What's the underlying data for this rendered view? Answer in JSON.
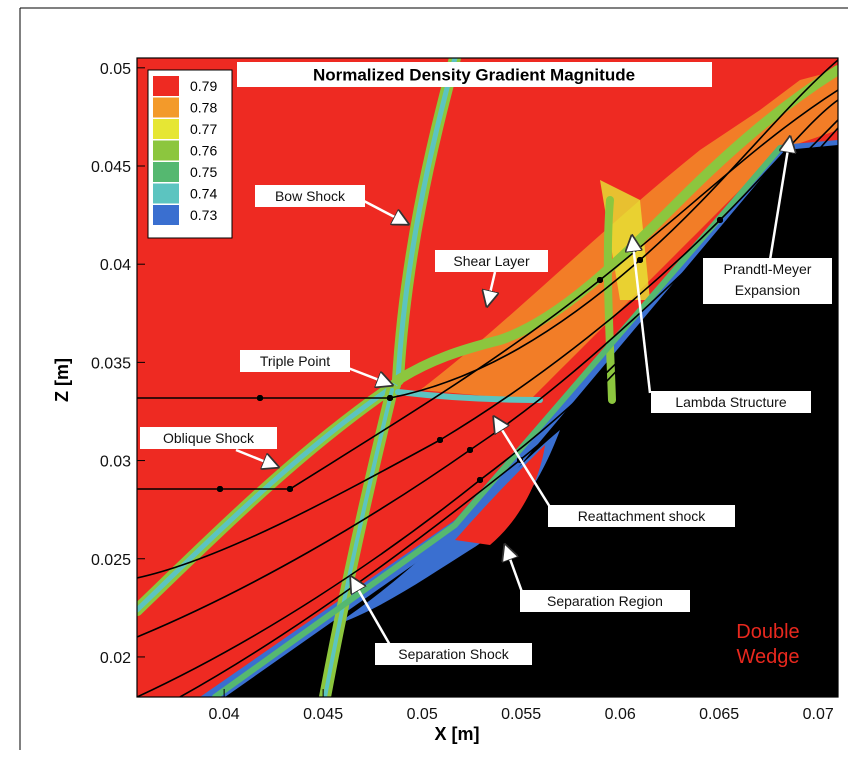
{
  "chart_data": {
    "type": "contour",
    "title": "Normalized Density Gradient Magnitude",
    "x_label": "X [m]",
    "y_label": "Z [m]",
    "xlim": [
      0.0356,
      0.071
    ],
    "ylim": [
      0.01796,
      0.0505
    ],
    "xticks": [
      0.04,
      0.045,
      0.05,
      0.055,
      0.06,
      0.065,
      0.07
    ],
    "yticks": [
      0.02,
      0.025,
      0.03,
      0.035,
      0.04,
      0.045,
      0.05
    ],
    "legend": {
      "levels": [
        0.79,
        0.78,
        0.77,
        0.76,
        0.75,
        0.74,
        0.73
      ],
      "colors": [
        "#ee2a22",
        "#f39a2a",
        "#e6e634",
        "#8cc63e",
        "#55b870",
        "#5cc4c0",
        "#3a6fd0"
      ]
    },
    "annotations": [
      {
        "lines": [
          "Bow Shock"
        ]
      },
      {
        "lines": [
          "Shear Layer"
        ]
      },
      {
        "lines": [
          "Triple Point"
        ]
      },
      {
        "lines": [
          "Oblique Shock"
        ]
      },
      {
        "lines": [
          "Prandtl-Meyer",
          "Expansion"
        ]
      },
      {
        "lines": [
          "Lambda Structure"
        ]
      },
      {
        "lines": [
          "Reattachment shock"
        ]
      },
      {
        "lines": [
          "Separation Region"
        ]
      },
      {
        "lines": [
          "Separation Shock"
        ]
      }
    ],
    "label": [
      "Double",
      "Wedge"
    ]
  }
}
